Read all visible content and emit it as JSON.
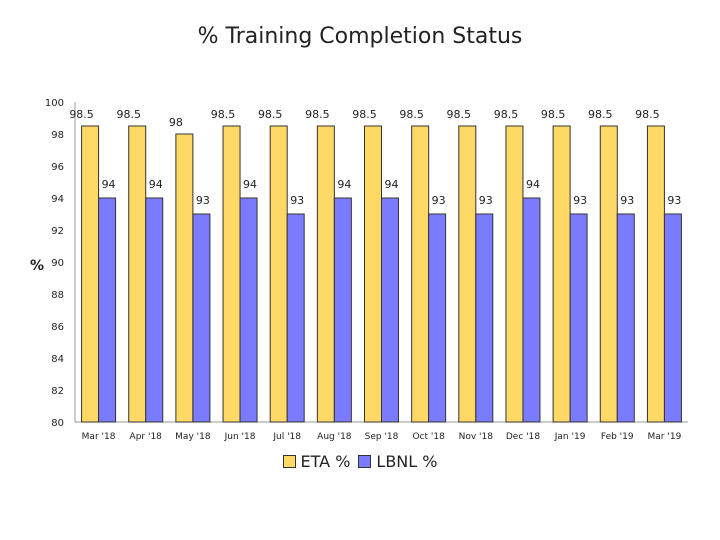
{
  "chart_data": {
    "type": "bar",
    "title": "% Training Completion Status",
    "ylabel": "%",
    "xlabel": "",
    "ylim": [
      80,
      100
    ],
    "yticks": [
      80,
      82,
      84,
      86,
      88,
      90,
      92,
      94,
      96,
      98,
      100
    ],
    "categories": [
      "Mar '18",
      "Apr '18",
      "May '18",
      "Jun '18",
      "Jul '18",
      "Aug '18",
      "Sep '18",
      "Oct '18",
      "Nov '18",
      "Dec '18",
      "Jan '19",
      "Feb '19",
      "Mar '19"
    ],
    "series": [
      {
        "name": "ETA %",
        "color": "#FFD966",
        "values": [
          98.5,
          98.5,
          98,
          98.5,
          98.5,
          98.5,
          98.5,
          98.5,
          98.5,
          98.5,
          98.5,
          98.5,
          98.5
        ]
      },
      {
        "name": "LBNL %",
        "color": "#7B7BFF",
        "values": [
          94,
          94,
          93,
          94,
          93,
          94,
          94,
          93,
          93,
          94,
          93,
          93,
          93
        ]
      }
    ],
    "grid": false,
    "legend_position": "bottom"
  }
}
